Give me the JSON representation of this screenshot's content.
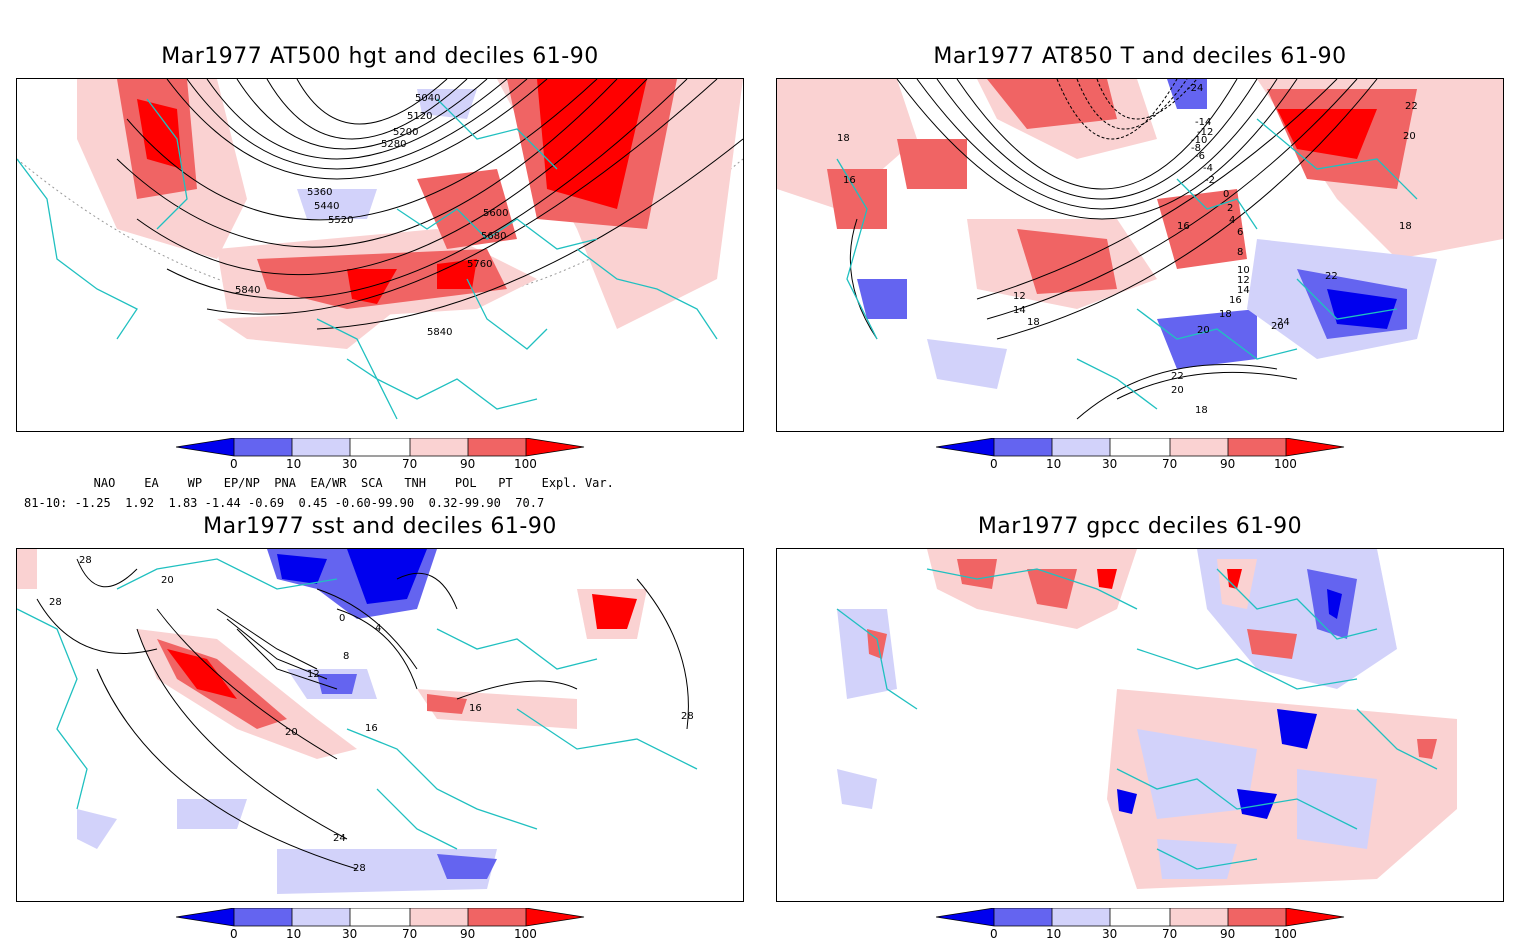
{
  "panels": {
    "p1": {
      "title": "Mar1977 AT500 hgt and deciles 61-90",
      "labels": [
        "5040",
        "5120",
        "5200",
        "5280",
        "5360",
        "5440",
        "5520",
        "5600",
        "5680",
        "5760",
        "5840",
        "5840"
      ]
    },
    "p2": {
      "title": "Mar1977 AT850 T and deciles 61-90",
      "labels": [
        "-24",
        "-14",
        "-12",
        "-10",
        "-8",
        "-6",
        "-4",
        "-2",
        "0",
        "2",
        "4",
        "6",
        "8",
        "10",
        "12",
        "14",
        "16",
        "18",
        "20",
        "22",
        "24",
        "18",
        "16",
        "12",
        "14",
        "18",
        "20",
        "22",
        "20",
        "18",
        "22",
        "20",
        "18",
        "16"
      ]
    },
    "p3": {
      "title": "Mar1977 sst and deciles 61-90",
      "labels": [
        "28",
        "28",
        "20",
        "0",
        "4",
        "8",
        "12",
        "16",
        "20",
        "24",
        "28",
        "16",
        "28"
      ]
    },
    "p4": {
      "title": "Mar1977 gpcc deciles 61-90",
      "labels": []
    }
  },
  "colorbar": {
    "ticks": [
      "0",
      "10",
      "30",
      "70",
      "90",
      "100"
    ],
    "colors": [
      "#0000ee",
      "#6464f0",
      "#d2d2fa",
      "#ffffff",
      "#fad2d2",
      "#f06464",
      "#ff0000"
    ]
  },
  "indices": {
    "header": "   NAO    EA    WP   EP/NP  PNA  EA/WR  SCA   TNH    POL   PT    Expl. Var.",
    "values": "81-10: -1.25  1.92  1.83 -1.44 -0.69  0.45 -0.60-99.90  0.32-99.90  70.7"
  }
}
